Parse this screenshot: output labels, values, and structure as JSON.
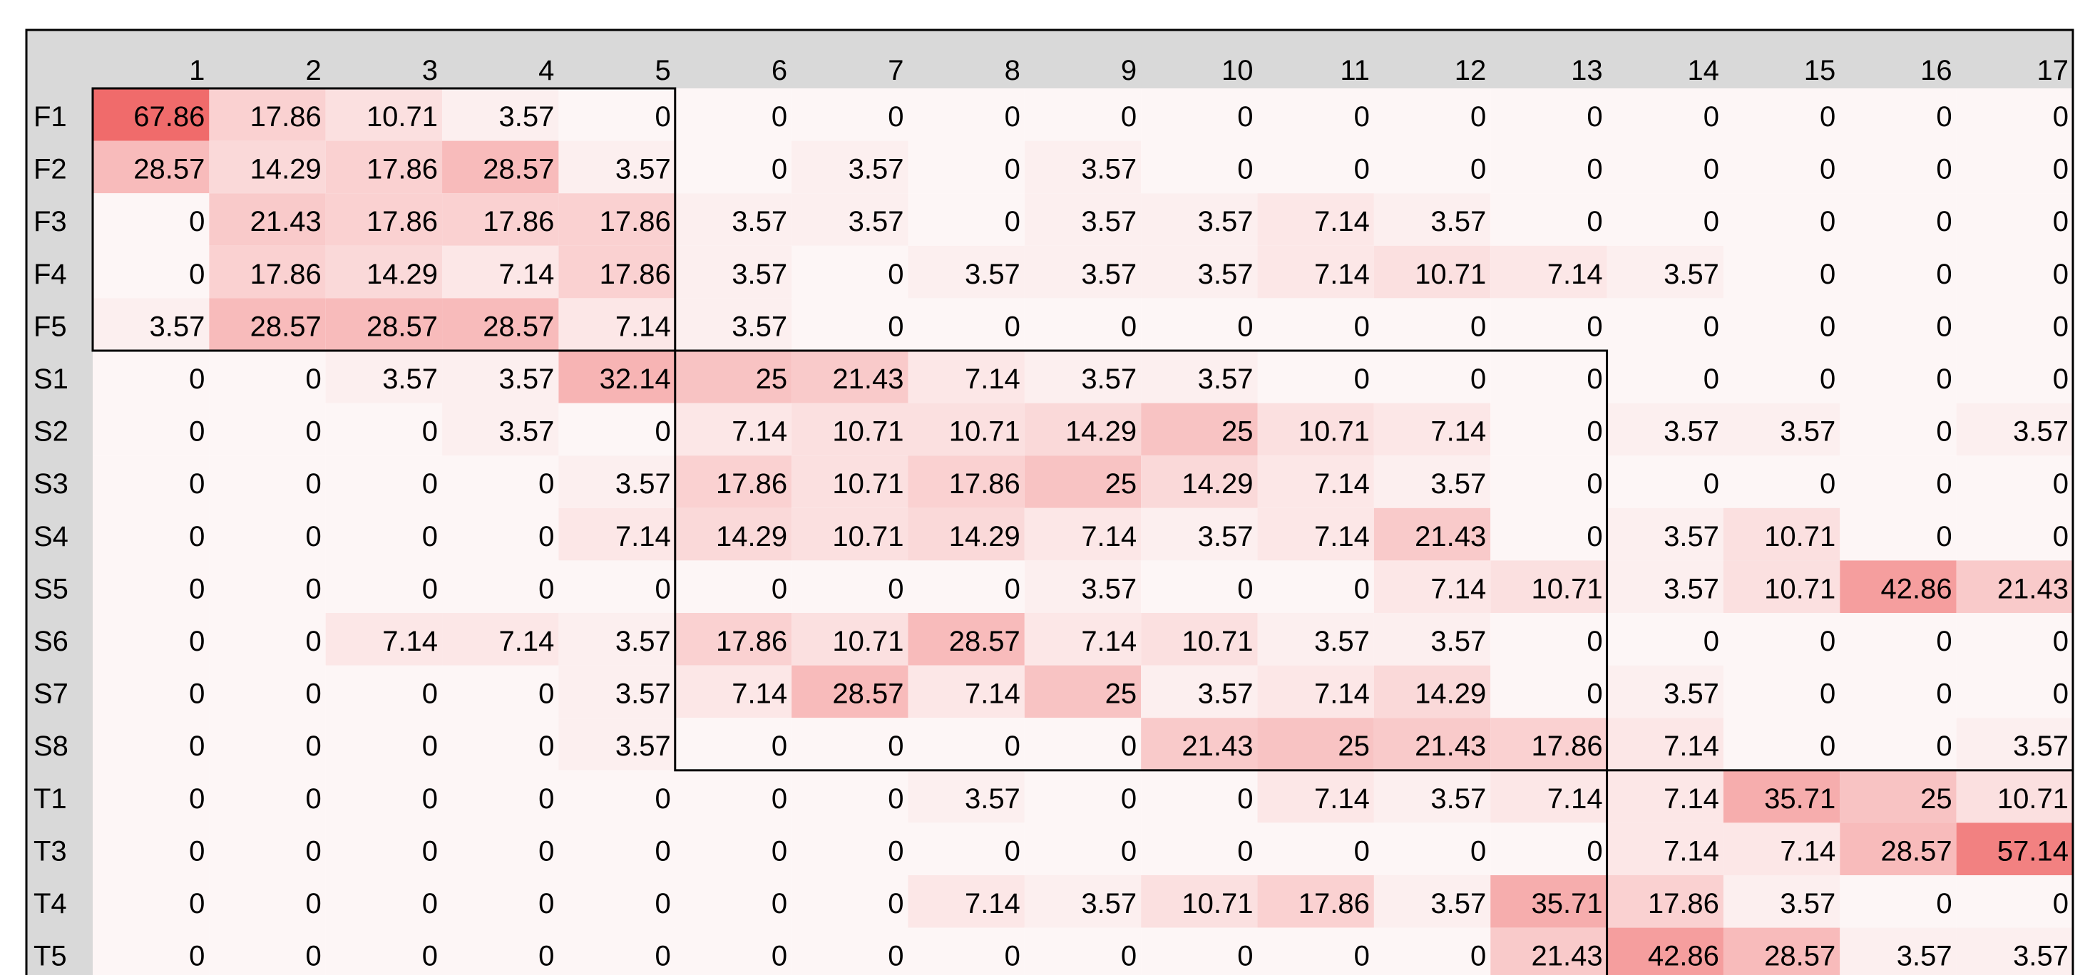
{
  "chart_data": {
    "type": "heatmap",
    "title": "",
    "xlabel": "",
    "ylabel": "",
    "grid": false,
    "colors": {
      "low": "#fdf6f6",
      "high": "#f06b6b",
      "header": "#d9d9d9",
      "border": "#000000"
    },
    "columns": [
      "1",
      "2",
      "3",
      "4",
      "5",
      "6",
      "7",
      "8",
      "9",
      "10",
      "11",
      "12",
      "13",
      "14",
      "15",
      "16",
      "17"
    ],
    "rows": [
      "F1",
      "F2",
      "F3",
      "F4",
      "F5",
      "S1",
      "S2",
      "S3",
      "S4",
      "S5",
      "S6",
      "S7",
      "S8",
      "T1",
      "T3",
      "T4",
      "T5"
    ],
    "values": [
      [
        67.86,
        17.86,
        10.71,
        3.57,
        0,
        0,
        0,
        0,
        0,
        0,
        0,
        0,
        0,
        0,
        0,
        0,
        0
      ],
      [
        28.57,
        14.29,
        17.86,
        28.57,
        3.57,
        0,
        3.57,
        0,
        3.57,
        0,
        0,
        0,
        0,
        0,
        0,
        0,
        0
      ],
      [
        0,
        21.43,
        17.86,
        17.86,
        17.86,
        3.57,
        3.57,
        0,
        3.57,
        3.57,
        7.14,
        3.57,
        0,
        0,
        0,
        0,
        0
      ],
      [
        0,
        17.86,
        14.29,
        7.14,
        17.86,
        3.57,
        0,
        3.57,
        3.57,
        3.57,
        7.14,
        10.71,
        7.14,
        3.57,
        0,
        0,
        0
      ],
      [
        3.57,
        28.57,
        28.57,
        28.57,
        7.14,
        3.57,
        0,
        0,
        0,
        0,
        0,
        0,
        0,
        0,
        0,
        0,
        0
      ],
      [
        0,
        0,
        3.57,
        3.57,
        32.14,
        25,
        21.43,
        7.14,
        3.57,
        3.57,
        0,
        0,
        0,
        0,
        0,
        0,
        0
      ],
      [
        0,
        0,
        0,
        3.57,
        0,
        7.14,
        10.71,
        10.71,
        14.29,
        25,
        10.71,
        7.14,
        0,
        3.57,
        3.57,
        0,
        3.57
      ],
      [
        0,
        0,
        0,
        0,
        3.57,
        17.86,
        10.71,
        17.86,
        25,
        14.29,
        7.14,
        3.57,
        0,
        0,
        0,
        0,
        0
      ],
      [
        0,
        0,
        0,
        0,
        7.14,
        14.29,
        10.71,
        14.29,
        7.14,
        3.57,
        7.14,
        21.43,
        0,
        3.57,
        10.71,
        0,
        0
      ],
      [
        0,
        0,
        0,
        0,
        0,
        0,
        0,
        0,
        3.57,
        0,
        0,
        7.14,
        10.71,
        3.57,
        10.71,
        42.86,
        21.43
      ],
      [
        0,
        0,
        7.14,
        7.14,
        3.57,
        17.86,
        10.71,
        28.57,
        7.14,
        10.71,
        3.57,
        3.57,
        0,
        0,
        0,
        0,
        0
      ],
      [
        0,
        0,
        0,
        0,
        3.57,
        7.14,
        28.57,
        7.14,
        25,
        3.57,
        7.14,
        14.29,
        0,
        3.57,
        0,
        0,
        0
      ],
      [
        0,
        0,
        0,
        0,
        3.57,
        0,
        0,
        0,
        0,
        21.43,
        25,
        21.43,
        17.86,
        7.14,
        0,
        0,
        3.57
      ],
      [
        0,
        0,
        0,
        0,
        0,
        0,
        0,
        3.57,
        0,
        0,
        7.14,
        3.57,
        7.14,
        7.14,
        35.71,
        25,
        10.71
      ],
      [
        0,
        0,
        0,
        0,
        0,
        0,
        0,
        0,
        0,
        0,
        0,
        0,
        0,
        7.14,
        7.14,
        28.57,
        57.14
      ],
      [
        0,
        0,
        0,
        0,
        0,
        0,
        0,
        7.14,
        3.57,
        10.71,
        17.86,
        3.57,
        35.71,
        17.86,
        3.57,
        0,
        0
      ],
      [
        0,
        0,
        0,
        0,
        0,
        0,
        0,
        0,
        0,
        0,
        0,
        0,
        21.43,
        42.86,
        28.57,
        3.57,
        3.57
      ]
    ],
    "group_boxes": [
      {
        "rows": [
          "F1",
          "F5"
        ],
        "cols": [
          "1",
          "5"
        ]
      },
      {
        "rows": [
          "S1",
          "S8"
        ],
        "cols": [
          "6",
          "13"
        ]
      },
      {
        "rows": [
          "T1",
          "T5"
        ],
        "cols": [
          "14",
          "17"
        ]
      }
    ]
  }
}
